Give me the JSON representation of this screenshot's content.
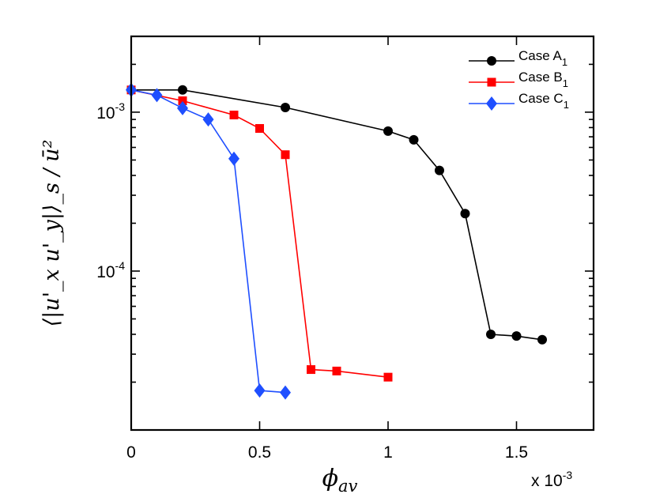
{
  "chart_data": {
    "type": "line",
    "title": "",
    "xlabel": "ϕ_av",
    "xlabel_main": "ϕ",
    "xlabel_sub": "av",
    "ylabel": "⟨|u'_x u'_y|⟩_s / ū²",
    "x_scale": "linear",
    "y_scale": "log",
    "xlim": [
      0,
      0.0018
    ],
    "ylim": [
      1e-05,
      0.003
    ],
    "x_multiplier": "x 10",
    "x_multiplier_exp": "-3",
    "x_ticks": [
      {
        "value": 0,
        "label": "0"
      },
      {
        "value": 0.0005,
        "label": "0.5"
      },
      {
        "value": 0.001,
        "label": "1"
      },
      {
        "value": 0.0015,
        "label": "1.5"
      }
    ],
    "y_ticks": [
      {
        "value": 0.001,
        "base": "10",
        "exp": "-3"
      },
      {
        "value": 0.0001,
        "base": "10",
        "exp": "-4"
      }
    ],
    "legend_position": "top-right",
    "series": [
      {
        "name": "Case A",
        "name_sub": "1",
        "color": "#000000",
        "marker": "circle",
        "x": [
          0,
          0.0002,
          0.0006,
          0.001,
          0.0011,
          0.0012,
          0.0013,
          0.0014,
          0.0015,
          0.0016
        ],
        "y": [
          0.00138,
          0.00138,
          0.00107,
          0.00076,
          0.00067,
          0.00043,
          0.00023,
          4e-05,
          3.9e-05,
          3.7e-05
        ]
      },
      {
        "name": "Case B",
        "name_sub": "1",
        "color": "#ff0000",
        "marker": "square",
        "x": [
          0,
          0.0002,
          0.0004,
          0.0005,
          0.0006,
          0.0007,
          0.0008,
          0.001
        ],
        "y": [
          0.00138,
          0.00118,
          0.00096,
          0.00079,
          0.00054,
          2.4e-05,
          2.35e-05,
          2.15e-05
        ]
      },
      {
        "name": "Case C",
        "name_sub": "1",
        "color": "#1f4fff",
        "marker": "diamond",
        "x": [
          0,
          0.0001,
          0.0002,
          0.0003,
          0.0004,
          0.0005,
          0.0006
        ],
        "y": [
          0.00138,
          0.00128,
          0.00106,
          0.0009,
          0.00051,
          1.77e-05,
          1.72e-05
        ]
      }
    ]
  }
}
